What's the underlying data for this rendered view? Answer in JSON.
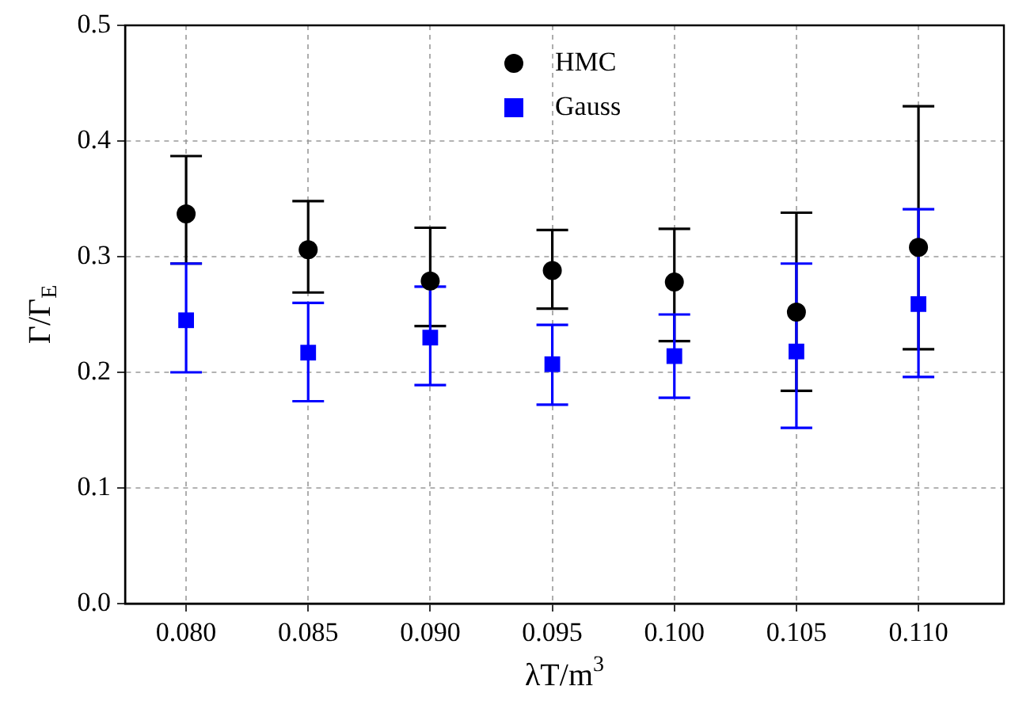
{
  "chart_data": {
    "type": "scatter",
    "xlabel": "λT/m$^{3}$",
    "ylabel": "Γ/Γ$_{E}$",
    "x": [
      0.08,
      0.085,
      0.09,
      0.095,
      0.1,
      0.105,
      0.11
    ],
    "series": [
      {
        "name": "HMC",
        "color": "#000000",
        "marker": "circle",
        "values": [
          0.337,
          0.306,
          0.279,
          0.288,
          0.278,
          0.252,
          0.308
        ],
        "errors": [
          [
            0.294,
            0.387
          ],
          [
            0.269,
            0.348
          ],
          [
            0.24,
            0.325
          ],
          [
            0.255,
            0.323
          ],
          [
            0.227,
            0.324
          ],
          [
            0.184,
            0.338
          ],
          [
            0.22,
            0.43
          ]
        ]
      },
      {
        "name": "Gauss",
        "color": "#0000ff",
        "marker": "square",
        "values": [
          0.245,
          0.217,
          0.23,
          0.207,
          0.214,
          0.218,
          0.259
        ],
        "errors": [
          [
            0.2,
            0.294
          ],
          [
            0.175,
            0.26
          ],
          [
            0.189,
            0.274
          ],
          [
            0.172,
            0.241
          ],
          [
            0.178,
            0.25
          ],
          [
            0.152,
            0.294
          ],
          [
            0.196,
            0.341
          ]
        ]
      }
    ],
    "xlim": [
      0.0775,
      0.1135
    ],
    "xticks": [
      {
        "value": 0.08,
        "label": "0.080"
      },
      {
        "value": 0.085,
        "label": "0.085"
      },
      {
        "value": 0.09,
        "label": "0.090"
      },
      {
        "value": 0.095,
        "label": "0.095"
      },
      {
        "value": 0.1,
        "label": "0.100"
      },
      {
        "value": 0.105,
        "label": "0.105"
      },
      {
        "value": 0.11,
        "label": "0.110"
      }
    ],
    "ylim": [
      0,
      0.5
    ],
    "yticks": [
      {
        "value": 0,
        "label": "0.0"
      },
      {
        "value": 0.1,
        "label": "0.1"
      },
      {
        "value": 0.2,
        "label": "0.2"
      },
      {
        "value": 0.3,
        "label": "0.3"
      },
      {
        "value": 0.4,
        "label": "0.4"
      },
      {
        "value": 0.5,
        "label": "0.5"
      }
    ],
    "grid": true,
    "legend": "top"
  }
}
